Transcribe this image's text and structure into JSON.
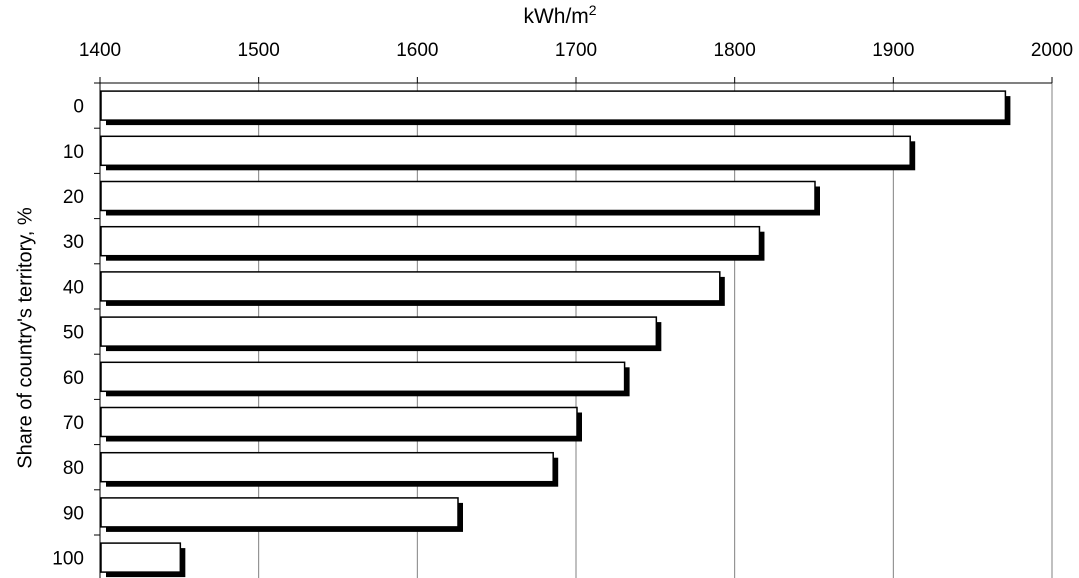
{
  "chart_data": {
    "type": "bar",
    "orientation": "horizontal",
    "xlabel": "kWh/m",
    "xlabel_superscript": "2",
    "ylabel": "Share of country's territory, %",
    "xlim": [
      1400,
      2000
    ],
    "x_ticks": [
      "1400",
      "1500",
      "1600",
      "1700",
      "1800",
      "1900",
      "2000"
    ],
    "x_axis_position": "top",
    "grid": "vertical",
    "categories": [
      "0",
      "10",
      "20",
      "30",
      "40",
      "50",
      "60",
      "70",
      "80",
      "90",
      "100"
    ],
    "values": [
      1970,
      1910,
      1850,
      1815,
      1790,
      1750,
      1730,
      1700,
      1685,
      1625,
      1450
    ],
    "bar_fill": "#ffffff",
    "bar_stroke": "#000000",
    "bar_shadow": "#000000",
    "grid_color": "#808080"
  }
}
